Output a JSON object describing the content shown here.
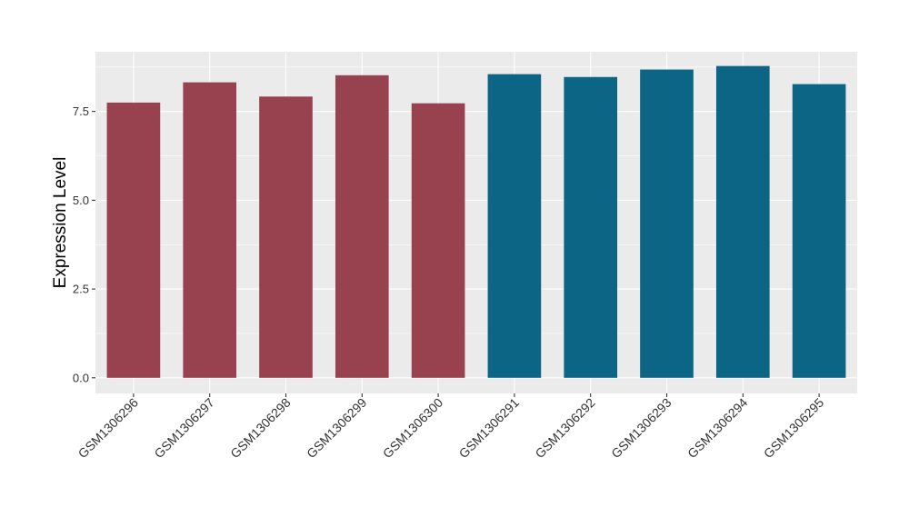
{
  "chart_data": {
    "type": "bar",
    "title": "",
    "xlabel": "",
    "ylabel": "Expression Level",
    "categories": [
      "GSM1306296",
      "GSM1306297",
      "GSM1306298",
      "GSM1306299",
      "GSM1306300",
      "GSM1306291",
      "GSM1306292",
      "GSM1306293",
      "GSM1306294",
      "GSM1306295"
    ],
    "values": [
      7.75,
      8.32,
      7.92,
      8.52,
      7.73,
      8.55,
      8.47,
      8.68,
      8.78,
      8.27
    ],
    "bar_colors": [
      "#99424f",
      "#99424f",
      "#99424f",
      "#99424f",
      "#99424f",
      "#0c6585",
      "#0c6585",
      "#0c6585",
      "#0c6585",
      "#0c6585"
    ],
    "ylim": [
      -0.44,
      9.18
    ],
    "yticks": [
      0.0,
      2.5,
      5.0,
      7.5
    ],
    "ytick_labels": [
      "0.0",
      "2.5",
      "5.0",
      "7.5"
    ],
    "grid": true,
    "legend": "none",
    "panel_background": "#ebebeb",
    "grid_color": "#ffffff"
  }
}
